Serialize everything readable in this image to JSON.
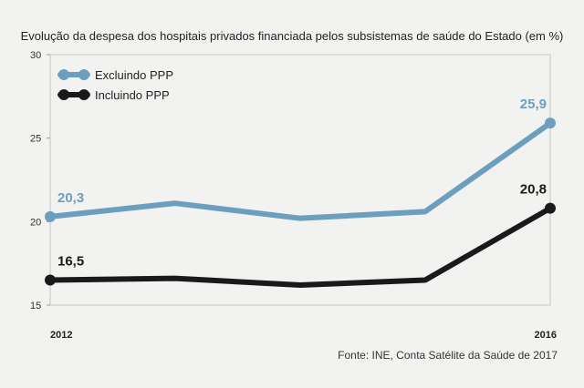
{
  "chart_data": {
    "type": "line",
    "title": "Evolução da despesa dos hospitais privados financiada pelos subsistemas de saúde do Estado (em %)",
    "x": [
      "2012",
      "2013",
      "2014",
      "2015",
      "2016"
    ],
    "xticks": [
      "2012",
      "2016"
    ],
    "ylim": [
      15,
      30
    ],
    "yticks": [
      "15",
      "20",
      "25",
      "30"
    ],
    "series": [
      {
        "name": "Excluindo PPP",
        "color": "#6b9fbd",
        "values": [
          20.3,
          21.1,
          20.2,
          20.6,
          25.9
        ],
        "data_labels": [
          {
            "index": 0,
            "text": "20,3"
          },
          {
            "index": 4,
            "text": "25,9"
          }
        ]
      },
      {
        "name": "Incluindo PPP",
        "color": "#1a1a1a",
        "values": [
          16.5,
          16.6,
          16.2,
          16.5,
          20.8
        ],
        "data_labels": [
          {
            "index": 0,
            "text": "16,5"
          },
          {
            "index": 4,
            "text": "20,8"
          }
        ]
      }
    ],
    "legend": "top-left",
    "source": "Fonte: INE, Conta Satélite da Saúde de 2017"
  }
}
